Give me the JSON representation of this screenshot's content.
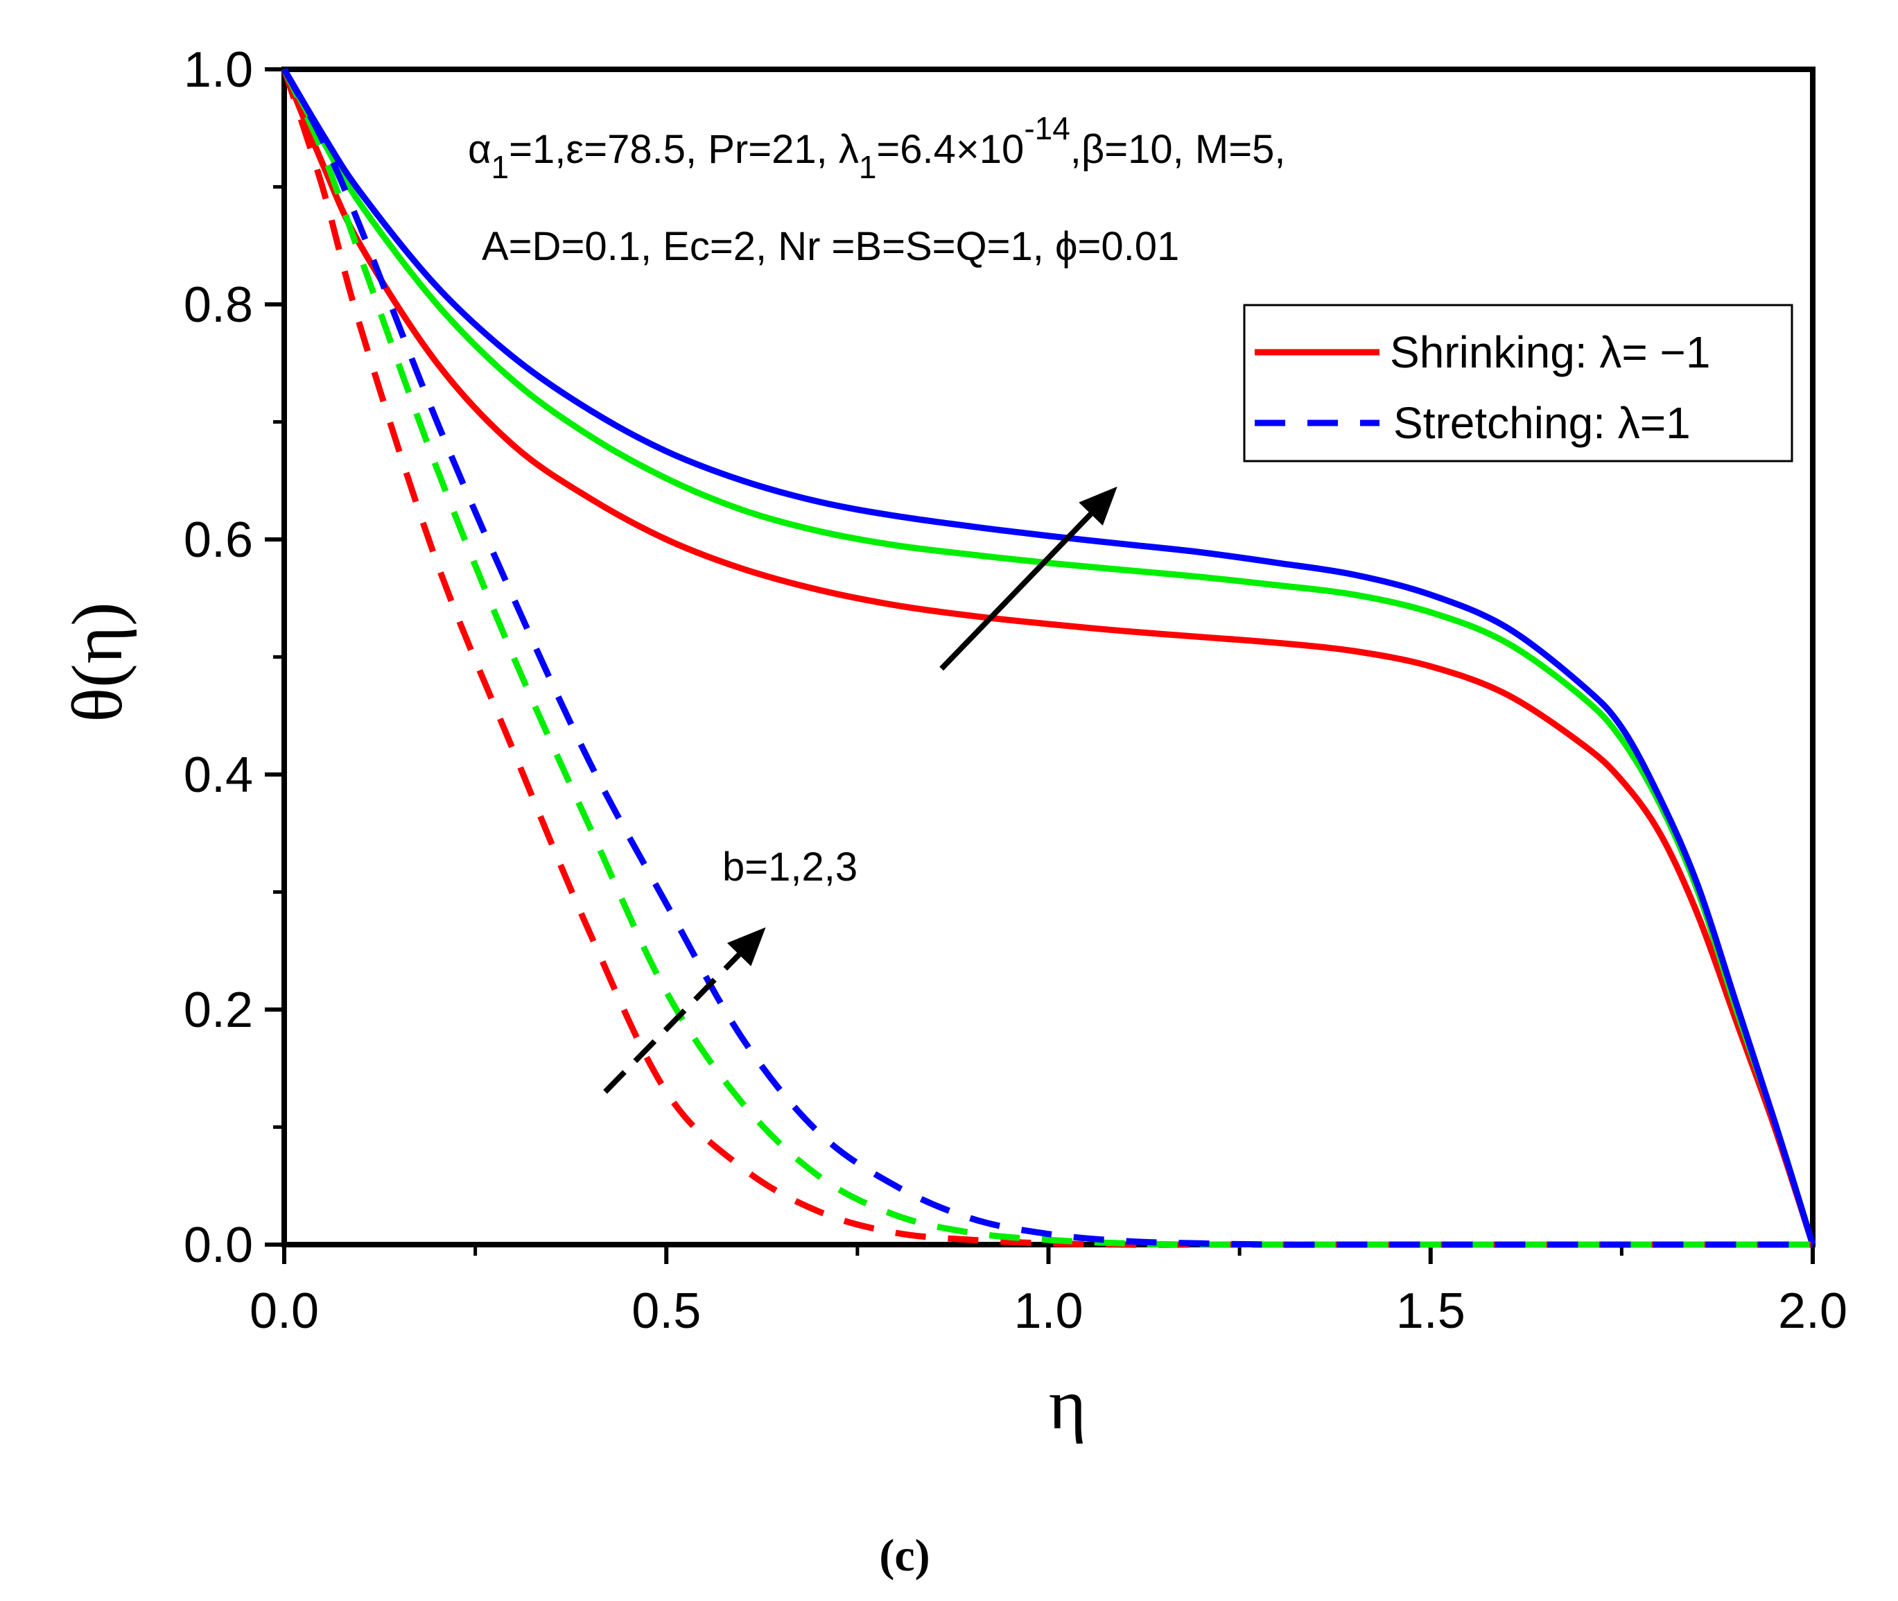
{
  "chart_data": {
    "type": "line",
    "title": "",
    "xlabel": "η",
    "ylabel": "θ(η)",
    "caption": "(c)",
    "xlim": [
      0.0,
      2.0
    ],
    "ylim": [
      0.0,
      1.0
    ],
    "x_ticks": [
      "0.0",
      "0.5",
      "1.0",
      "1.5",
      "2.0"
    ],
    "y_ticks": [
      "0.0",
      "0.2",
      "0.4",
      "0.6",
      "0.8",
      "1.0"
    ],
    "grid": false,
    "params_line1": {
      "a": "α",
      "a_sub": "1",
      "b": "=1,ε=78.5, Pr=21, λ",
      "b_sub": "1",
      "c": "=6.4×10",
      "c_sup": "-14",
      "d": ",β=10, M=5,"
    },
    "params_line2": "A=D=0.1, Ec=2, Nr =B=S=Q=1, ϕ=0.01",
    "annotation_b": "b=1,2,3",
    "legend": {
      "placement": "top-right",
      "entries": [
        {
          "label": "Shrinking: λ= −1",
          "style": "solid"
        },
        {
          "label": "Stretching: λ=1",
          "style": "dashed"
        }
      ]
    },
    "colors": {
      "b1": "#ff0000",
      "b2": "#00ee00",
      "b3": "#0000ff",
      "axis": "#000000",
      "legend_solid": "#ff0000",
      "legend_dashed": "#0000ff"
    },
    "x": [
      0.0,
      0.05,
      0.1,
      0.2,
      0.3,
      0.4,
      0.5,
      0.6,
      0.7,
      0.8,
      0.9,
      1.0,
      1.1,
      1.2,
      1.3,
      1.4,
      1.5,
      1.6,
      1.7,
      1.75,
      1.8,
      1.85,
      1.9,
      1.95,
      2.0
    ],
    "series": [
      {
        "name": "Shrinking b=1",
        "style": "solid",
        "color_key": "b1",
        "values": [
          1.0,
          0.92,
          0.85,
          0.75,
          0.68,
          0.635,
          0.6,
          0.575,
          0.557,
          0.544,
          0.535,
          0.528,
          0.522,
          0.517,
          0.512,
          0.505,
          0.492,
          0.468,
          0.425,
          0.395,
          0.35,
          0.28,
          0.19,
          0.1,
          0.0
        ]
      },
      {
        "name": "Shrinking b=2",
        "style": "solid",
        "color_key": "b2",
        "values": [
          1.0,
          0.94,
          0.885,
          0.8,
          0.735,
          0.688,
          0.652,
          0.625,
          0.607,
          0.595,
          0.587,
          0.58,
          0.574,
          0.568,
          0.561,
          0.553,
          0.538,
          0.512,
          0.465,
          0.43,
          0.375,
          0.3,
          0.2,
          0.105,
          0.0
        ]
      },
      {
        "name": "Shrinking b=3",
        "style": "solid",
        "color_key": "b3",
        "values": [
          1.0,
          0.945,
          0.895,
          0.815,
          0.755,
          0.71,
          0.675,
          0.65,
          0.632,
          0.62,
          0.611,
          0.603,
          0.596,
          0.589,
          0.58,
          0.57,
          0.553,
          0.525,
          0.475,
          0.44,
          0.38,
          0.305,
          0.205,
          0.105,
          0.0
        ]
      },
      {
        "name": "Stretching b=1",
        "style": "dashed",
        "color_key": "b1",
        "values": [
          1.0,
          0.9,
          0.78,
          0.58,
          0.42,
          0.265,
          0.13,
          0.065,
          0.028,
          0.01,
          0.004,
          0.001,
          0.0,
          0.0,
          0.0,
          0.0,
          0.0,
          0.0,
          0.0,
          0.0,
          0.0,
          0.0,
          0.0,
          0.0,
          0.0
        ]
      },
      {
        "name": "Stretching b=2",
        "style": "dashed",
        "color_key": "b2",
        "values": [
          1.0,
          0.93,
          0.84,
          0.66,
          0.5,
          0.355,
          0.215,
          0.12,
          0.058,
          0.025,
          0.01,
          0.004,
          0.001,
          0.0,
          0.0,
          0.0,
          0.0,
          0.0,
          0.0,
          0.0,
          0.0,
          0.0,
          0.0,
          0.0,
          0.0
        ]
      },
      {
        "name": "Stretching b=3",
        "style": "dashed",
        "color_key": "b3",
        "values": [
          1.0,
          0.94,
          0.865,
          0.7,
          0.55,
          0.41,
          0.29,
          0.175,
          0.095,
          0.05,
          0.022,
          0.009,
          0.003,
          0.001,
          0.0,
          0.0,
          0.0,
          0.0,
          0.0,
          0.0,
          0.0,
          0.0,
          0.0,
          0.0,
          0.0
        ]
      }
    ],
    "arrows": [
      {
        "name": "solid-trend-arrow",
        "style": "solid",
        "from": [
          0.86,
          0.49
        ],
        "to": [
          1.09,
          0.645
        ]
      },
      {
        "name": "dashed-trend-arrow",
        "style": "dashed",
        "from": [
          0.42,
          0.13
        ],
        "to": [
          0.63,
          0.27
        ]
      }
    ]
  }
}
